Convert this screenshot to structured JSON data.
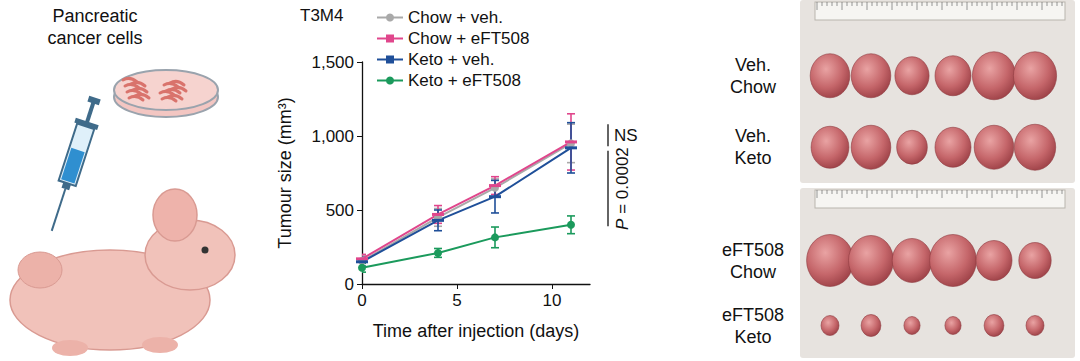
{
  "chart_data": {
    "type": "line",
    "title": "T3M4",
    "x_label": "Time after injection (days)",
    "y_label": "Tumour size (mm³)",
    "x": [
      0,
      4,
      7,
      11
    ],
    "series": [
      {
        "name": "Chow + veh.",
        "color": "#a9a9a9",
        "marker": "circle",
        "values": [
          155,
          450,
          650,
          950
        ],
        "errors": [
          35,
          60,
          60,
          130
        ]
      },
      {
        "name": "Chow + eFT508",
        "color": "#e0468c",
        "marker": "dash",
        "values": [
          170,
          470,
          665,
          960
        ],
        "errors": [
          30,
          60,
          60,
          190
        ]
      },
      {
        "name": "Keto + veh.",
        "color": "#1f4f99",
        "marker": "dash",
        "values": [
          150,
          430,
          590,
          920
        ],
        "errors": [
          30,
          70,
          110,
          170
        ]
      },
      {
        "name": "Keto + eFT508",
        "color": "#1b9a5c",
        "marker": "circle",
        "values": [
          110,
          210,
          315,
          400
        ],
        "errors": [
          30,
          30,
          70,
          60
        ]
      }
    ],
    "xlim": [
      0,
      12
    ],
    "xticks": [
      0,
      5,
      10
    ],
    "ylim": [
      0,
      1500
    ],
    "yticks": [
      0,
      500,
      {
        "value": 1000,
        "label": "1,000"
      },
      {
        "value": 1500,
        "label": "1,500"
      }
    ],
    "grid": false,
    "legend": "upper left",
    "annotations": [
      {
        "text": "NS",
        "from": 1080,
        "to": 930
      },
      {
        "text": "P = 0.0002",
        "from": 900,
        "to": 390
      }
    ]
  },
  "illustration": {
    "label_lines": [
      "Pancreatic",
      "cancer cells"
    ]
  },
  "photos": [
    {
      "groups": [
        {
          "label_lines": [
            "Veh.",
            "Chow"
          ]
        },
        {
          "label_lines": [
            "Veh.",
            "Keto"
          ]
        }
      ]
    },
    {
      "groups": [
        {
          "label_lines": [
            "eFT508",
            "Chow"
          ]
        },
        {
          "label_lines": [
            "eFT508",
            "Keto"
          ]
        }
      ]
    }
  ]
}
